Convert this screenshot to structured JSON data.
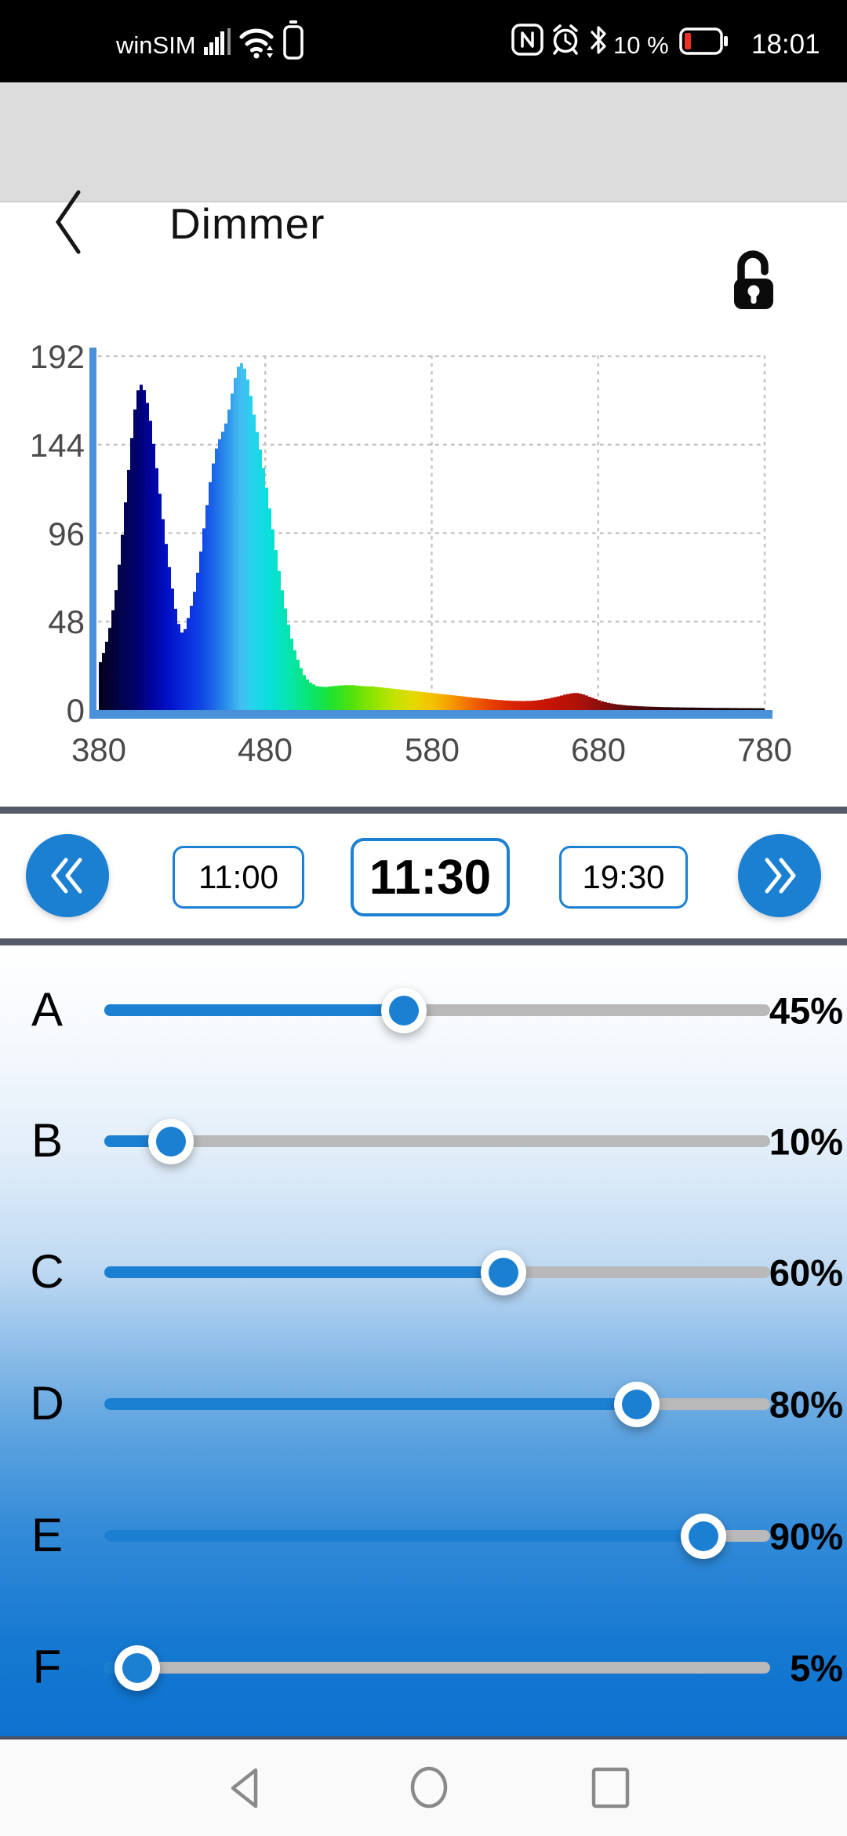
{
  "status_bar": {
    "carrier": "winSIM",
    "battery_text": "10 %",
    "time": "18:01",
    "battery_level_color": "#ee3124"
  },
  "header": {
    "title": "Dimmer"
  },
  "chart_data": {
    "type": "area",
    "title": "",
    "x_ticks": [
      380,
      480,
      580,
      680,
      780
    ],
    "y_ticks": [
      0,
      48,
      96,
      144,
      192
    ],
    "xlim": [
      380,
      780
    ],
    "ylim": [
      0,
      192
    ],
    "grid": true,
    "axis_color": "#4a90d8",
    "points": [
      [
        380,
        26
      ],
      [
        383,
        34
      ],
      [
        386,
        46
      ],
      [
        389,
        62
      ],
      [
        392,
        84
      ],
      [
        395,
        112
      ],
      [
        398,
        140
      ],
      [
        400,
        158
      ],
      [
        402,
        172
      ],
      [
        404,
        177
      ],
      [
        406,
        175
      ],
      [
        408,
        168
      ],
      [
        410,
        158
      ],
      [
        413,
        138
      ],
      [
        416,
        116
      ],
      [
        419,
        94
      ],
      [
        422,
        74
      ],
      [
        425,
        56
      ],
      [
        427,
        47
      ],
      [
        429,
        42
      ],
      [
        431,
        44
      ],
      [
        434,
        54
      ],
      [
        437,
        66
      ],
      [
        440,
        84
      ],
      [
        443,
        104
      ],
      [
        446,
        124
      ],
      [
        449,
        140
      ],
      [
        452,
        148
      ],
      [
        455,
        154
      ],
      [
        458,
        166
      ],
      [
        460,
        176
      ],
      [
        462,
        184
      ],
      [
        464,
        189
      ],
      [
        466,
        187
      ],
      [
        468,
        182
      ],
      [
        470,
        173
      ],
      [
        472,
        162
      ],
      [
        474,
        152
      ],
      [
        476,
        142
      ],
      [
        479,
        126
      ],
      [
        482,
        108
      ],
      [
        485,
        90
      ],
      [
        488,
        72
      ],
      [
        491,
        56
      ],
      [
        494,
        42
      ],
      [
        497,
        32
      ],
      [
        500,
        24
      ],
      [
        503,
        18
      ],
      [
        506,
        15
      ],
      [
        510,
        13
      ],
      [
        515,
        12.5
      ],
      [
        520,
        13
      ],
      [
        526,
        13.5
      ],
      [
        532,
        13.5
      ],
      [
        538,
        13
      ],
      [
        544,
        12.8
      ],
      [
        550,
        12.2
      ],
      [
        556,
        11.6
      ],
      [
        562,
        11
      ],
      [
        568,
        10.4
      ],
      [
        574,
        9.8
      ],
      [
        580,
        9.2
      ],
      [
        586,
        8.6
      ],
      [
        592,
        8
      ],
      [
        598,
        7.4
      ],
      [
        604,
        6.8
      ],
      [
        610,
        6.2
      ],
      [
        616,
        5.7
      ],
      [
        622,
        5.3
      ],
      [
        628,
        5
      ],
      [
        634,
        4.9
      ],
      [
        640,
        5.1
      ],
      [
        645,
        5.6
      ],
      [
        650,
        6.4
      ],
      [
        655,
        7.4
      ],
      [
        660,
        8.6
      ],
      [
        664,
        9.3
      ],
      [
        667,
        9.2
      ],
      [
        670,
        8.6
      ],
      [
        673,
        7.6
      ],
      [
        677,
        6.2
      ],
      [
        681,
        4.9
      ],
      [
        686,
        3.8
      ],
      [
        691,
        3
      ],
      [
        698,
        2.4
      ],
      [
        706,
        2
      ],
      [
        715,
        1.7
      ],
      [
        725,
        1.5
      ],
      [
        740,
        1.3
      ],
      [
        760,
        1.1
      ],
      [
        780,
        1
      ]
    ],
    "gradient_stops": [
      [
        380,
        "#05001c"
      ],
      [
        392,
        "#020347"
      ],
      [
        403,
        "#01016f"
      ],
      [
        412,
        "#0105a0"
      ],
      [
        422,
        "#0112c8"
      ],
      [
        432,
        "#0a2ade"
      ],
      [
        442,
        "#1048e6"
      ],
      [
        450,
        "#1e6ce8"
      ],
      [
        458,
        "#2f97ea"
      ],
      [
        465,
        "#44bdf2"
      ],
      [
        472,
        "#27d2ee"
      ],
      [
        482,
        "#09dfdc"
      ],
      [
        495,
        "#06e5ab"
      ],
      [
        508,
        "#0ae56b"
      ],
      [
        520,
        "#20e22e"
      ],
      [
        532,
        "#55e10c"
      ],
      [
        545,
        "#8fe400"
      ],
      [
        558,
        "#c3e300"
      ],
      [
        570,
        "#e7d800"
      ],
      [
        582,
        "#f4bc00"
      ],
      [
        592,
        "#f59900"
      ],
      [
        602,
        "#f26f00"
      ],
      [
        612,
        "#ea4a00"
      ],
      [
        624,
        "#dd2c00"
      ],
      [
        638,
        "#d01b02"
      ],
      [
        652,
        "#c41305"
      ],
      [
        664,
        "#b61107"
      ],
      [
        676,
        "#99100c"
      ],
      [
        690,
        "#6f0d0d"
      ],
      [
        705,
        "#4c0909"
      ],
      [
        725,
        "#2e0606"
      ],
      [
        750,
        "#1d0404"
      ],
      [
        780,
        "#140303"
      ]
    ]
  },
  "time_row": {
    "times": [
      {
        "label": "11:00",
        "selected": false
      },
      {
        "label": "11:30",
        "selected": true
      },
      {
        "label": "19:30",
        "selected": false
      }
    ]
  },
  "sliders": {
    "accent": "#1b80d2",
    "track_color": "#b9b9b9",
    "items": [
      {
        "label": "A",
        "percent": 45
      },
      {
        "label": "B",
        "percent": 10
      },
      {
        "label": "C",
        "percent": 60
      },
      {
        "label": "D",
        "percent": 80
      },
      {
        "label": "E",
        "percent": 90
      },
      {
        "label": "F",
        "percent": 5
      }
    ]
  }
}
